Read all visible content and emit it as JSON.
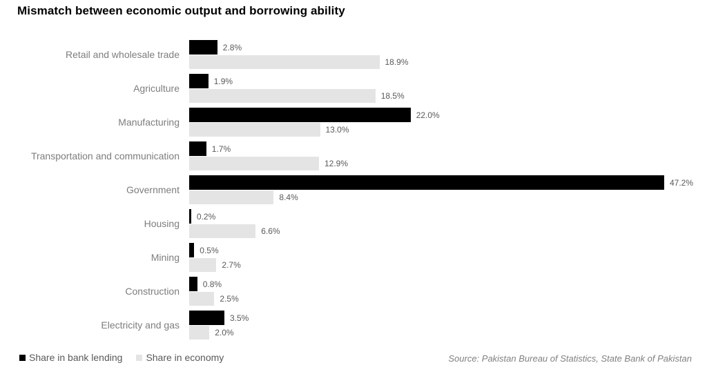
{
  "title": "Mismatch between economic output and borrowing ability",
  "legend": [
    {
      "label": "Share in bank lending",
      "color": "#000000"
    },
    {
      "label": "Share in economy",
      "color": "#e4e4e4"
    }
  ],
  "source": "Source: Pakistan Bureau of Statistics, State Bank of Pakistan",
  "chart_data": {
    "type": "bar",
    "orientation": "horizontal",
    "title": "Mismatch between economic output and borrowing ability",
    "categories": [
      "Retail and wholesale trade",
      "Agriculture",
      "Manufacturing",
      "Transportation and communication",
      "Government",
      "Housing",
      "Mining",
      "Construction",
      "Electricity and gas"
    ],
    "series": [
      {
        "name": "Share in bank lending",
        "color": "#000000",
        "values": [
          2.8,
          1.9,
          22.0,
          1.7,
          47.2,
          0.2,
          0.5,
          0.8,
          3.5
        ]
      },
      {
        "name": "Share in economy",
        "color": "#e4e4e4",
        "values": [
          18.9,
          18.5,
          13.0,
          12.9,
          8.4,
          6.6,
          2.7,
          2.5,
          2.0
        ]
      }
    ],
    "value_labels": [
      [
        "2.8%",
        "18.9%"
      ],
      [
        "1.9%",
        "18.5%"
      ],
      [
        "22.0%",
        "13.0%"
      ],
      [
        "1.7%",
        "12.9%"
      ],
      [
        "47.2%",
        "8.4%"
      ],
      [
        "0.2%",
        "6.6%"
      ],
      [
        "0.5%",
        "2.7%"
      ],
      [
        "0.8%",
        "2.5%"
      ],
      [
        "3.5%",
        "2.0%"
      ]
    ],
    "xlim": [
      0,
      50
    ],
    "grid": false,
    "legend_position": "bottom-left",
    "source_position": "bottom-right"
  }
}
